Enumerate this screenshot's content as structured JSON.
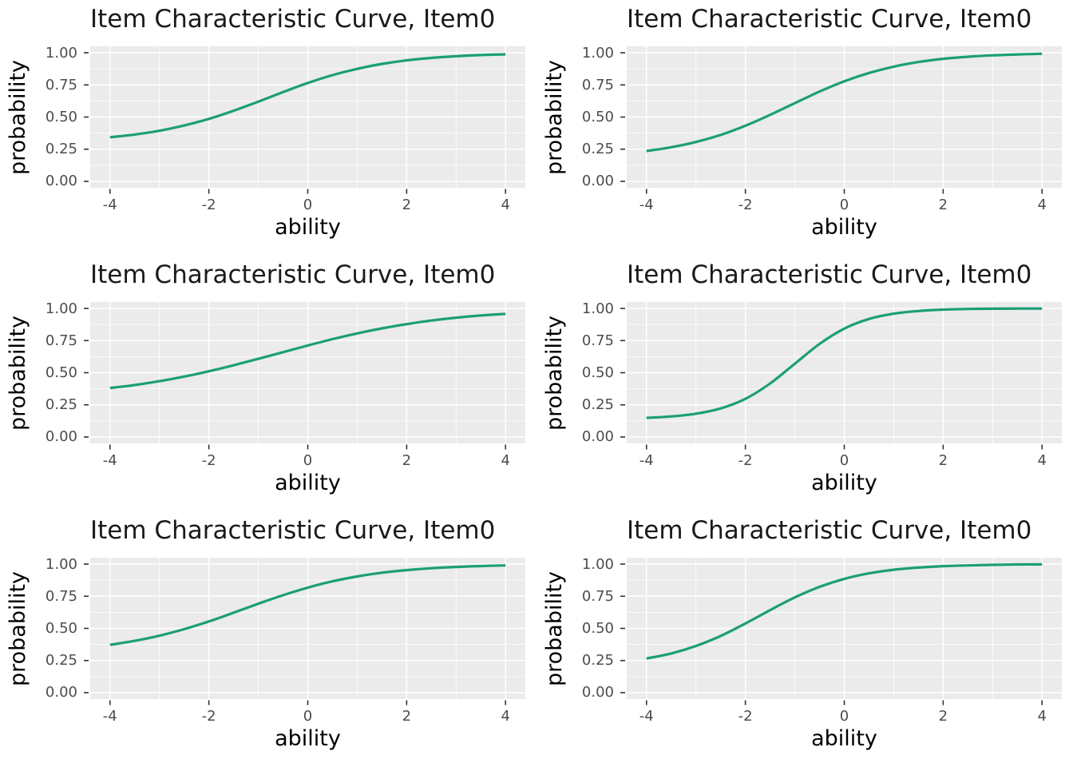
{
  "figure": {
    "rows": 3,
    "columns": 2,
    "background": "#ffffff"
  },
  "colors": {
    "curve": "#1b9e77",
    "panel_background": "#ebebeb",
    "gridline": "#ffffff",
    "tick_mark": "#333333",
    "tick_label": "#4d4d4d",
    "title_text": "#1a1a1a",
    "axis_title_text": "#000000"
  },
  "chart_data": {
    "type": "line",
    "grid": true,
    "legend": false,
    "xlabel": "ability",
    "ylabel": "probability",
    "xlim": [
      -4,
      4
    ],
    "ylim": [
      0,
      1
    ],
    "x_tick_labels": [
      "-4",
      "-2",
      "0",
      "2",
      "4"
    ],
    "x_tick_values": [
      -4,
      -2,
      0,
      2,
      4
    ],
    "y_tick_labels": [
      "0.00",
      "0.25",
      "0.50",
      "0.75",
      "1.00"
    ],
    "y_tick_values": [
      0,
      0.25,
      0.5,
      0.75,
      1
    ],
    "x_minor_ticks": [
      -3,
      -1,
      1,
      3
    ],
    "y_minor_ticks": [
      0.125,
      0.375,
      0.625,
      0.875
    ],
    "x": [
      -4,
      -3.5,
      -3,
      -2.5,
      -2,
      -1.5,
      -1,
      -0.5,
      0,
      0.5,
      1,
      1.5,
      2,
      2.5,
      3,
      3.5,
      4
    ],
    "plots": [
      {
        "title": "Item Characteristic Curve, Item0",
        "title_truncated": true,
        "y": [
          0.343,
          0.364,
          0.393,
          0.434,
          0.486,
          0.549,
          0.62,
          0.694,
          0.765,
          0.826,
          0.875,
          0.913,
          0.941,
          0.96,
          0.973,
          0.982,
          0.988
        ]
      },
      {
        "title": "Item Characteristic Curve, Item0",
        "title_truncated": true,
        "y": [
          0.236,
          0.265,
          0.306,
          0.361,
          0.432,
          0.517,
          0.608,
          0.698,
          0.778,
          0.843,
          0.892,
          0.928,
          0.953,
          0.969,
          0.98,
          0.987,
          0.992
        ]
      },
      {
        "title": "Item Characteristic Curve, Item0",
        "title_truncated": true,
        "y": [
          0.381,
          0.404,
          0.434,
          0.47,
          0.511,
          0.558,
          0.608,
          0.66,
          0.712,
          0.761,
          0.806,
          0.845,
          0.878,
          0.906,
          0.928,
          0.945,
          0.958
        ]
      },
      {
        "title": "Item Characteristic Curve, Item0",
        "title_truncated": true,
        "y": [
          0.149,
          0.16,
          0.181,
          0.222,
          0.297,
          0.416,
          0.57,
          0.724,
          0.843,
          0.918,
          0.959,
          0.98,
          0.991,
          0.996,
          0.998,
          0.999,
          0.999
        ]
      },
      {
        "title": "Item Characteristic Curve, Item0",
        "title_truncated": true,
        "y": [
          0.372,
          0.403,
          0.443,
          0.494,
          0.554,
          0.622,
          0.692,
          0.758,
          0.817,
          0.866,
          0.904,
          0.933,
          0.953,
          0.968,
          0.978,
          0.985,
          0.99
        ]
      },
      {
        "title": "Item Characteristic Curve, Item0",
        "title_truncated": true,
        "y": [
          0.266,
          0.305,
          0.363,
          0.441,
          0.538,
          0.642,
          0.741,
          0.823,
          0.885,
          0.928,
          0.956,
          0.973,
          0.984,
          0.99,
          0.994,
          0.997,
          0.998
        ]
      }
    ]
  }
}
